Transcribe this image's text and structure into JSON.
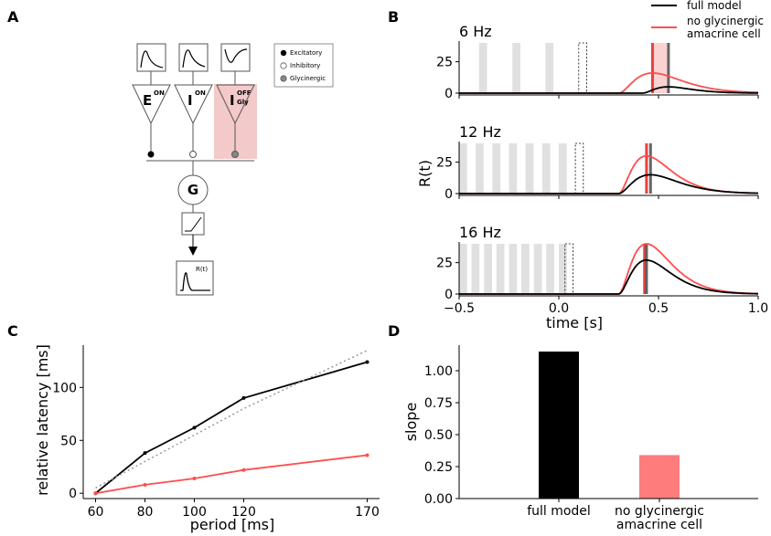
{
  "figure": {
    "panels": [
      "A",
      "B",
      "C",
      "D"
    ]
  },
  "diagram": {
    "units": [
      {
        "label": "E",
        "superscript": "ON",
        "subscript": "",
        "output": "Excitatory"
      },
      {
        "label": "I",
        "superscript": "ON",
        "subscript": "",
        "output": "Inhibitory"
      },
      {
        "label": "I",
        "superscript": "OFF",
        "subscript": "Gly",
        "output": "Glycinergic"
      }
    ],
    "legend": [
      "Excitatory",
      "Inhibitory",
      "Glycinergic"
    ],
    "pool_label": "G",
    "response_label": "R(t)"
  },
  "chart_data": [
    {
      "panel": "B",
      "type": "line",
      "legend": [
        "full model",
        "no glycinergic amacrine cell"
      ],
      "xlabel": "time [s]",
      "ylabel": "R(t)",
      "xlim": [
        -0.5,
        1.0
      ],
      "ylim": [
        0,
        40
      ],
      "xticks": [
        "−0.5",
        "0.0",
        "0.5",
        "1.0"
      ],
      "yticks": [
        "0",
        "25"
      ],
      "series_colors": {
        "full model": "#000000",
        "no glycinergic amacrine cell": "#ff4d4d"
      },
      "subplots": [
        {
          "title": "6 Hz",
          "flashes_start": [
            -0.4,
            -0.233,
            -0.067
          ],
          "flash_width": 0.04,
          "omitted_flash_start": 0.1,
          "response_onset": {
            "full model": 0.42,
            "no glycinergic amacrine cell": 0.3
          },
          "peak_time": {
            "full model": 0.55,
            "no glycinergic amacrine cell": 0.47
          },
          "peak_value": {
            "full model": 5,
            "no glycinergic amacrine cell": 16
          },
          "peak_markers": [
            0.47,
            0.55
          ]
        },
        {
          "title": "12 Hz",
          "flashes_start": [
            -0.5,
            -0.417,
            -0.333,
            -0.25,
            -0.167,
            -0.083,
            0.0
          ],
          "flash_width": 0.04,
          "omitted_flash_start": 0.083,
          "response_onset": {
            "full model": 0.3,
            "no glycinergic amacrine cell": 0.3
          },
          "peak_time": {
            "full model": 0.46,
            "no glycinergic amacrine cell": 0.44
          },
          "peak_value": {
            "full model": 15,
            "no glycinergic amacrine cell": 30
          },
          "peak_markers": [
            0.44,
            0.46
          ]
        },
        {
          "title": "16 Hz",
          "flashes_start": [
            -0.5,
            -0.438,
            -0.375,
            -0.313,
            -0.25,
            -0.188,
            -0.125,
            -0.063,
            0.0
          ],
          "flash_width": 0.04,
          "omitted_flash_start": 0.031,
          "response_onset": {
            "full model": 0.3,
            "no glycinergic amacrine cell": 0.3
          },
          "peak_time": {
            "full model": 0.44,
            "no glycinergic amacrine cell": 0.44
          },
          "peak_value": {
            "full model": 27,
            "no glycinergic amacrine cell": 40
          },
          "peak_markers": [
            0.43,
            0.44
          ]
        }
      ]
    },
    {
      "panel": "C",
      "type": "line",
      "xlabel": "period [ms]",
      "ylabel": "relative latency [ms]",
      "xlim": [
        55,
        175
      ],
      "ylim": [
        -5,
        140
      ],
      "xticks": [
        60,
        80,
        100,
        120,
        170
      ],
      "yticks": [
        0,
        50,
        100
      ],
      "x": [
        60,
        80,
        100,
        120,
        170
      ],
      "series": [
        {
          "color": "#000000",
          "values": [
            0,
            38,
            62,
            90,
            124
          ]
        },
        {
          "color": "#ff4d4d",
          "values": [
            0,
            8,
            14,
            22,
            36
          ]
        },
        {
          "color": "#999999",
          "style": "dotted",
          "values": [
            5,
            30,
            55,
            80,
            135
          ]
        }
      ]
    },
    {
      "panel": "D",
      "type": "bar",
      "ylabel": "slope",
      "categories": [
        "full model",
        "no glycinergic amacrine cell"
      ],
      "category_lines": [
        [
          "full model"
        ],
        [
          "no glycinergic",
          "amacrine cell"
        ]
      ],
      "values": [
        1.15,
        0.34
      ],
      "colors": [
        "#000000",
        "#ff7c7c"
      ],
      "ylim": [
        0,
        1.2
      ],
      "yticks": [
        "0.00",
        "0.25",
        "0.50",
        "0.75",
        "1.00"
      ]
    }
  ]
}
